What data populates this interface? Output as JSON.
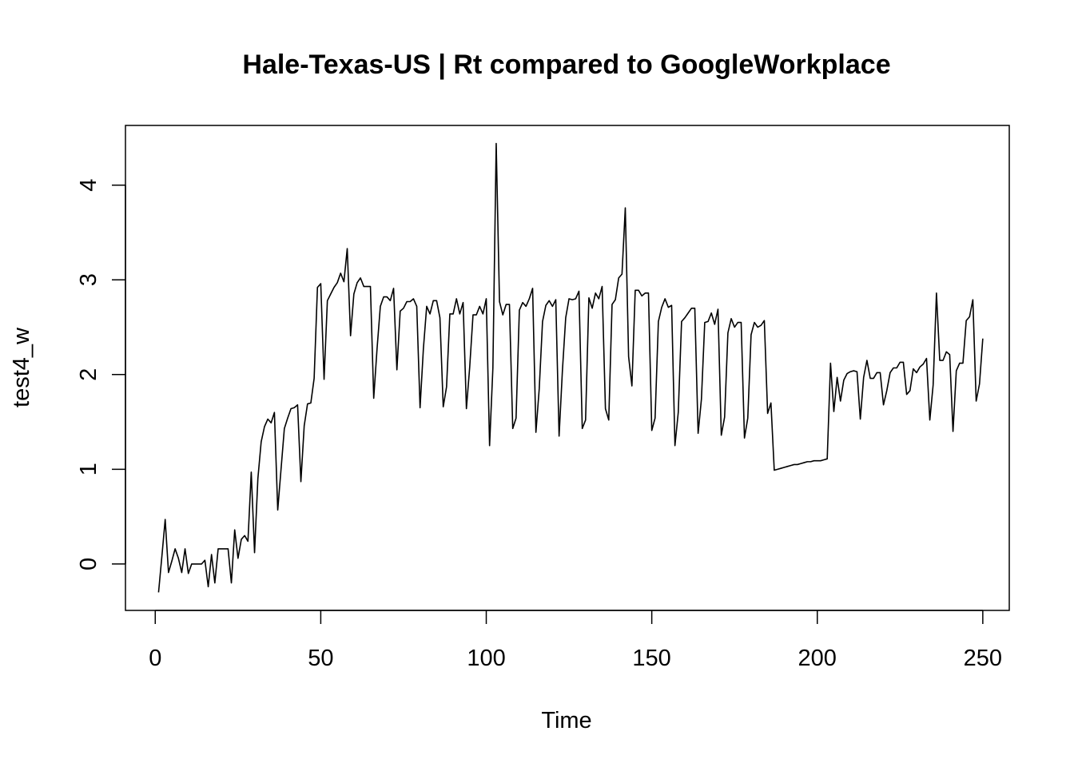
{
  "chart_data": {
    "type": "line",
    "title": "Hale-Texas-US | Rt compared to GoogleWorkplace",
    "xlabel": "Time",
    "ylabel": "test4_w",
    "xlim": [
      -9,
      258
    ],
    "ylim": [
      -0.49,
      4.63
    ],
    "x_ticks": [
      0,
      50,
      100,
      150,
      200,
      250
    ],
    "y_ticks": [
      0,
      1,
      2,
      3,
      4
    ],
    "grid": false,
    "legend": "none",
    "line_color": "#000000",
    "series": [
      {
        "x_start": 1,
        "values": [
          -0.3,
          0.08,
          0.47,
          -0.09,
          0.03,
          0.16,
          0.06,
          -0.09,
          0.16,
          -0.1,
          0.0,
          0.0,
          0.0,
          0.0,
          0.04,
          -0.24,
          0.1,
          -0.2,
          0.16,
          0.16,
          0.16,
          0.16,
          -0.2,
          0.36,
          0.06,
          0.26,
          0.3,
          0.24,
          0.97,
          0.12,
          0.9,
          1.29,
          1.45,
          1.53,
          1.49,
          1.6,
          0.57,
          1.0,
          1.43,
          1.54,
          1.64,
          1.65,
          1.68,
          0.87,
          1.46,
          1.69,
          1.7,
          1.96,
          2.92,
          2.96,
          1.95,
          2.78,
          2.85,
          2.92,
          2.97,
          3.07,
          2.98,
          3.33,
          2.41,
          2.85,
          2.97,
          3.02,
          2.93,
          2.93,
          2.93,
          1.75,
          2.27,
          2.72,
          2.82,
          2.82,
          2.78,
          2.91,
          2.05,
          2.67,
          2.7,
          2.77,
          2.77,
          2.8,
          2.72,
          1.65,
          2.27,
          2.72,
          2.64,
          2.78,
          2.78,
          2.6,
          1.66,
          1.87,
          2.64,
          2.64,
          2.8,
          2.64,
          2.76,
          1.64,
          2.08,
          2.63,
          2.63,
          2.72,
          2.64,
          2.8,
          1.25,
          2.07,
          4.44,
          2.77,
          2.63,
          2.74,
          2.74,
          1.43,
          1.54,
          2.68,
          2.76,
          2.72,
          2.8,
          2.91,
          1.39,
          1.85,
          2.56,
          2.73,
          2.78,
          2.72,
          2.79,
          1.35,
          2.04,
          2.6,
          2.8,
          2.79,
          2.8,
          2.88,
          1.43,
          1.52,
          2.81,
          2.7,
          2.86,
          2.8,
          2.93,
          1.64,
          1.52,
          2.74,
          2.79,
          3.02,
          3.06,
          3.76,
          2.19,
          1.88,
          2.89,
          2.89,
          2.83,
          2.86,
          2.86,
          1.41,
          1.54,
          2.56,
          2.71,
          2.8,
          2.71,
          2.73,
          1.25,
          1.6,
          2.56,
          2.6,
          2.65,
          2.7,
          2.7,
          1.38,
          1.74,
          2.55,
          2.56,
          2.65,
          2.53,
          2.69,
          1.36,
          1.55,
          2.44,
          2.59,
          2.5,
          2.55,
          2.55,
          1.33,
          1.54,
          2.42,
          2.55,
          2.5,
          2.52,
          2.57,
          1.59,
          1.7,
          0.99,
          1.0,
          1.01,
          1.02,
          1.03,
          1.04,
          1.05,
          1.05,
          1.06,
          1.07,
          1.08,
          1.08,
          1.09,
          1.09,
          1.09,
          1.1,
          1.11,
          2.12,
          1.61,
          1.97,
          1.72,
          1.94,
          2.01,
          2.03,
          2.04,
          2.03,
          1.53,
          1.97,
          2.15,
          1.96,
          1.96,
          2.02,
          2.02,
          1.68,
          1.83,
          2.02,
          2.07,
          2.07,
          2.13,
          2.13,
          1.79,
          1.83,
          2.06,
          2.02,
          2.08,
          2.11,
          2.17,
          1.52,
          1.89,
          2.86,
          2.15,
          2.15,
          2.24,
          2.21,
          1.4,
          2.04,
          2.12,
          2.12,
          2.57,
          2.61,
          2.79,
          1.72,
          1.9,
          2.38
        ]
      }
    ]
  }
}
